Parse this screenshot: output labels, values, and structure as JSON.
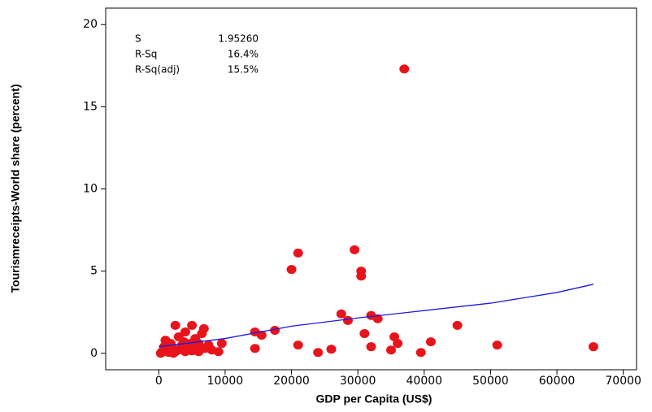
{
  "chart_data": {
    "type": "scatter",
    "xlabel": "GDP per Capita (US$)",
    "ylabel": "Tourismreceipts-World share (percent)",
    "stats": [
      {
        "label": "S",
        "value": "1.95260"
      },
      {
        "label": "R-Sq",
        "value": "16.4%"
      },
      {
        "label": "R-Sq(adj)",
        "value": "15.5%"
      }
    ],
    "xlim": [
      -8000,
      72000
    ],
    "ylim": [
      -1,
      21
    ],
    "xticks": [
      0,
      10000,
      20000,
      30000,
      40000,
      50000,
      60000,
      70000
    ],
    "yticks": [
      0,
      5,
      10,
      15,
      20
    ],
    "series": [
      {
        "style": "points",
        "color": "#e8141c",
        "x": [
          37000,
          29500,
          21000,
          20000,
          30500,
          30500,
          27500,
          32000,
          33000,
          28500,
          45000,
          17500,
          14500,
          15500,
          31000,
          35500,
          36000,
          41000,
          32000,
          21000,
          14500,
          26000,
          24000,
          35000,
          39500,
          51000,
          65500,
          9000,
          9500,
          2500,
          5000,
          6800,
          6500,
          4000,
          3000,
          1000,
          1800,
          2000,
          3500,
          4500,
          5500,
          6000,
          7500,
          8000,
          500,
          1000,
          1500,
          2500,
          3000,
          4000,
          5000,
          6000,
          7000,
          800,
          300,
          2200,
          5500,
          4800,
          3800,
          6200
        ],
        "values": [
          17.3,
          6.3,
          6.1,
          5.1,
          5.0,
          4.7,
          2.4,
          2.3,
          2.1,
          2.0,
          1.7,
          1.4,
          1.3,
          1.1,
          1.2,
          1.0,
          0.6,
          0.7,
          0.4,
          0.5,
          0.3,
          0.25,
          0.05,
          0.2,
          0.05,
          0.5,
          0.4,
          0.1,
          0.6,
          1.7,
          1.7,
          1.5,
          1.2,
          1.3,
          1.0,
          0.8,
          0.6,
          0.4,
          0.5,
          0.3,
          0.4,
          0.6,
          0.5,
          0.2,
          0.1,
          0.2,
          0.05,
          0.1,
          0.2,
          0.1,
          0.15,
          0.1,
          0.3,
          0.4,
          0.0,
          0.0,
          0.9,
          0.6,
          0.7,
          0.2
        ]
      },
      {
        "style": "line",
        "color": "#1a1ae6",
        "x": [
          0,
          10000,
          20000,
          30000,
          40000,
          50000,
          60000,
          65500
        ],
        "values": [
          0.4,
          0.9,
          1.65,
          2.15,
          2.6,
          3.05,
          3.7,
          4.2
        ]
      }
    ]
  }
}
